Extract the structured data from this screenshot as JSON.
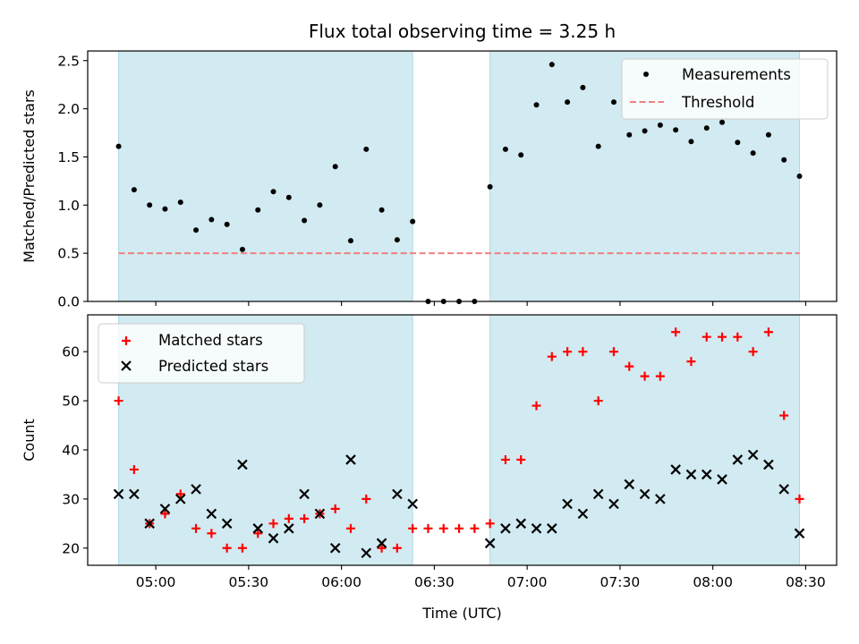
{
  "chart_data": {
    "title": "Flux total observing time = 3.25 h",
    "xlabel": "Time (UTC)",
    "xticks": [
      "05:00",
      "05:30",
      "06:00",
      "06:30",
      "07:00",
      "07:30",
      "08:00",
      "08:30"
    ],
    "xlim": [
      "04:38",
      "08:40"
    ],
    "grid": false,
    "shaded_intervals": [
      [
        "04:48",
        "06:23"
      ],
      [
        "06:48",
        "08:28"
      ]
    ],
    "shade_color": "#add8e6",
    "times": [
      "04:48",
      "04:53",
      "04:58",
      "05:03",
      "05:08",
      "05:13",
      "05:18",
      "05:23",
      "05:28",
      "05:33",
      "05:38",
      "05:43",
      "05:48",
      "05:53",
      "05:58",
      "06:03",
      "06:08",
      "06:13",
      "06:18",
      "06:23",
      "06:28",
      "06:33",
      "06:38",
      "06:43",
      "06:48",
      "06:53",
      "06:58",
      "07:03",
      "07:08",
      "07:13",
      "07:18",
      "07:23",
      "07:28",
      "07:33",
      "07:38",
      "07:43",
      "07:48",
      "07:53",
      "07:58",
      "08:03",
      "08:08",
      "08:13",
      "08:18",
      "08:23",
      "08:28"
    ],
    "panels": [
      {
        "type": "scatter",
        "ylabel": "Matched/Predicted stars",
        "ylim": [
          0,
          2.6
        ],
        "yticks": [
          "0.0",
          "0.5",
          "1.0",
          "1.5",
          "2.0",
          "2.5"
        ],
        "legend_position": "top-right",
        "series": [
          {
            "name": "Measurements",
            "color": "#000000",
            "marker": "dot",
            "values": [
              1.61,
              1.16,
              1.0,
              0.96,
              1.03,
              0.74,
              0.85,
              0.8,
              0.54,
              0.95,
              1.14,
              1.08,
              0.84,
              1.0,
              1.4,
              0.63,
              1.58,
              0.95,
              0.64,
              0.83,
              0,
              0,
              0,
              0,
              1.19,
              1.58,
              1.52,
              2.04,
              2.46,
              2.07,
              2.22,
              1.61,
              2.07,
              1.73,
              1.77,
              1.83,
              1.78,
              1.66,
              1.8,
              1.86,
              1.65,
              1.54,
              1.73,
              1.47,
              1.3
            ]
          }
        ],
        "threshold": {
          "name": "Threshold",
          "value": 0.5,
          "color": "#f08080",
          "style": "dashed"
        }
      },
      {
        "type": "scatter",
        "ylabel": "Count",
        "ylim": [
          16.5,
          67.5
        ],
        "yticks": [
          "20",
          "30",
          "40",
          "50",
          "60"
        ],
        "legend_position": "top-left",
        "series": [
          {
            "name": "Matched stars",
            "color": "#ff0000",
            "marker": "plus",
            "values": [
              50,
              36,
              25,
              27,
              31,
              24,
              23,
              20,
              20,
              23,
              25,
              26,
              26,
              27,
              28,
              24,
              30,
              20,
              20,
              24,
              24,
              24,
              24,
              24,
              25,
              38,
              38,
              49,
              59,
              60,
              60,
              50,
              60,
              57,
              55,
              55,
              64,
              58,
              63,
              63,
              63,
              60,
              64,
              47,
              30
            ]
          },
          {
            "name": "Predicted stars",
            "color": "#000000",
            "marker": "cross",
            "values": [
              31,
              31,
              25,
              28,
              30,
              32,
              27,
              25,
              37,
              24,
              22,
              24,
              31,
              27,
              20,
              38,
              19,
              21,
              31,
              29,
              null,
              null,
              null,
              null,
              21,
              24,
              25,
              24,
              24,
              29,
              27,
              31,
              29,
              33,
              31,
              30,
              36,
              35,
              35,
              34,
              38,
              39,
              37,
              32,
              23
            ]
          }
        ]
      }
    ]
  }
}
